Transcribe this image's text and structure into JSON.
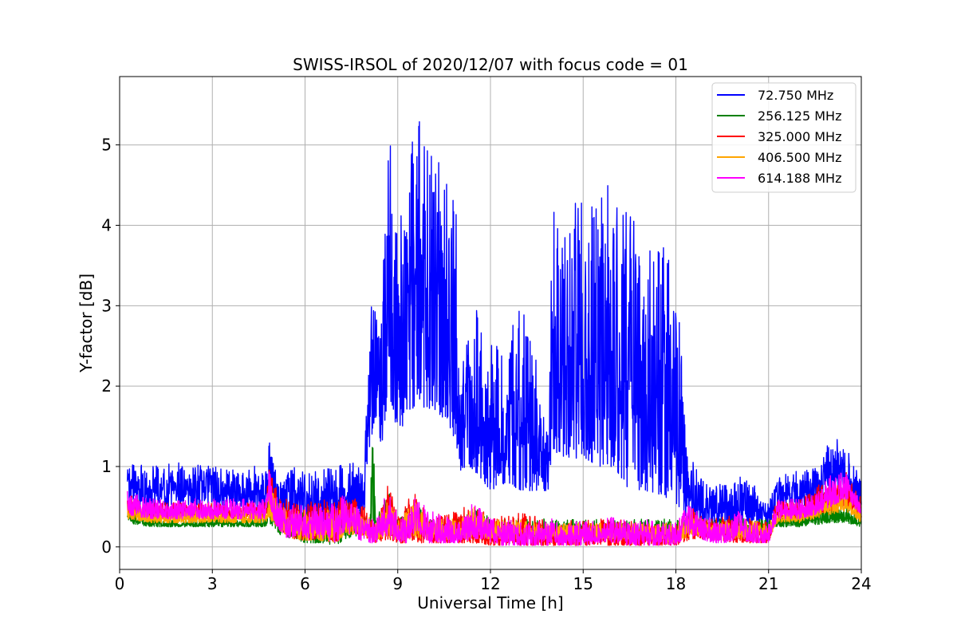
{
  "chart_data": {
    "type": "line",
    "title": "SWISS-IRSOL of 2020/12/07 with focus code = 01",
    "xlabel": "Universal Time [h]",
    "ylabel": "Y-factor [dB]",
    "xlim": [
      0,
      24
    ],
    "ylim": [
      -0.28,
      5.85
    ],
    "xticks": [
      0,
      3,
      6,
      9,
      12,
      15,
      18,
      21,
      24
    ],
    "xtick_labels": [
      "0",
      "3",
      "6",
      "9",
      "12",
      "15",
      "18",
      "21",
      "24"
    ],
    "yticks": [
      0,
      1,
      2,
      3,
      4,
      5
    ],
    "ytick_labels": [
      "0",
      "1",
      "2",
      "3",
      "4",
      "5"
    ],
    "grid": true,
    "legend_position": "top-right",
    "series": [
      {
        "name": " 72.750 MHz",
        "color": "#0000ff",
        "x": [
          0.25,
          1.0,
          2.0,
          3.0,
          4.0,
          4.7,
          4.85,
          5.0,
          5.5,
          6.0,
          6.5,
          7.0,
          7.5,
          7.9,
          8.1,
          8.3,
          8.5,
          8.7,
          8.9,
          9.2,
          9.6,
          10.0,
          10.5,
          10.9,
          11.0,
          11.3,
          11.6,
          12.0,
          12.5,
          13.0,
          13.5,
          13.9,
          14.0,
          14.5,
          15.0,
          15.5,
          16.0,
          16.5,
          17.0,
          17.5,
          18.0,
          18.3,
          18.5,
          19.0,
          19.5,
          20.0,
          20.5,
          21.0,
          21.3,
          22.0,
          22.5,
          22.9,
          23.3,
          23.7,
          24.0
        ],
        "lo": [
          0.55,
          0.5,
          0.5,
          0.52,
          0.5,
          0.48,
          0.7,
          0.45,
          0.35,
          0.3,
          0.3,
          0.35,
          0.4,
          0.3,
          1.3,
          1.6,
          1.2,
          2.0,
          1.5,
          1.5,
          1.8,
          1.7,
          1.6,
          1.3,
          0.9,
          1.0,
          0.9,
          0.7,
          0.8,
          0.7,
          0.7,
          0.7,
          1.2,
          1.1,
          1.1,
          1.0,
          1.0,
          0.7,
          0.7,
          0.65,
          0.55,
          0.4,
          0.25,
          0.25,
          0.25,
          0.25,
          0.3,
          0.25,
          0.5,
          0.5,
          0.55,
          0.65,
          0.75,
          0.55,
          0.5
        ],
        "hi": [
          1.1,
          1.0,
          1.05,
          1.0,
          0.95,
          1.05,
          1.45,
          1.05,
          1.0,
          1.0,
          0.95,
          1.0,
          1.05,
          1.0,
          3.2,
          3.0,
          3.2,
          5.5,
          4.5,
          4.0,
          5.55,
          5.0,
          4.7,
          4.45,
          2.0,
          2.8,
          3.0,
          2.6,
          2.5,
          3.1,
          2.3,
          1.6,
          4.3,
          4.4,
          4.3,
          4.5,
          4.6,
          4.2,
          3.9,
          3.95,
          3.8,
          1.6,
          1.2,
          0.8,
          0.8,
          0.9,
          0.8,
          0.6,
          0.9,
          0.95,
          1.0,
          1.3,
          1.35,
          1.1,
          0.8
        ]
      },
      {
        "name": "256.125 MHz",
        "color": "#008000",
        "x": [
          0.25,
          1.0,
          2.0,
          3.0,
          4.0,
          4.7,
          4.85,
          5.2,
          5.6,
          6.0,
          6.5,
          7.0,
          7.3,
          7.8,
          8.1,
          8.2,
          8.3,
          8.7,
          9.0,
          9.5,
          10.0,
          11.0,
          11.5,
          12.0,
          13.0,
          14.0,
          15.0,
          16.0,
          17.0,
          18.0,
          18.5,
          19.0,
          20.0,
          21.0,
          21.3,
          22.0,
          23.0,
          23.5,
          24.0
        ],
        "lo": [
          0.3,
          0.25,
          0.25,
          0.25,
          0.25,
          0.25,
          0.3,
          0.15,
          0.1,
          0.05,
          0.05,
          0.02,
          0.1,
          0.15,
          0.2,
          0.25,
          0.2,
          0.2,
          0.15,
          0.15,
          0.15,
          0.15,
          0.15,
          0.1,
          0.1,
          0.1,
          0.1,
          0.1,
          0.1,
          0.05,
          0.2,
          0.2,
          0.15,
          0.15,
          0.25,
          0.25,
          0.3,
          0.3,
          0.25
        ],
        "hi": [
          0.45,
          0.35,
          0.35,
          0.35,
          0.35,
          0.35,
          0.65,
          0.45,
          0.4,
          0.45,
          0.4,
          0.4,
          0.5,
          0.4,
          0.35,
          1.95,
          0.35,
          0.7,
          0.35,
          0.6,
          0.35,
          0.35,
          0.55,
          0.35,
          0.35,
          0.35,
          0.35,
          0.35,
          0.35,
          0.35,
          0.4,
          0.35,
          0.35,
          0.35,
          0.4,
          0.4,
          0.55,
          0.5,
          0.35
        ]
      },
      {
        "name": "325.000 MHz",
        "color": "#ff0000",
        "x": [
          0.25,
          1.0,
          2.0,
          3.0,
          4.0,
          4.7,
          4.85,
          5.2,
          5.6,
          6.0,
          6.5,
          7.0,
          7.3,
          7.8,
          8.3,
          8.7,
          9.0,
          9.5,
          10.0,
          11.0,
          11.5,
          12.0,
          13.0,
          14.0,
          15.0,
          16.0,
          17.0,
          18.0,
          18.5,
          19.0,
          20.0,
          21.0,
          21.3,
          22.0,
          23.0,
          23.5,
          24.0
        ],
        "lo": [
          0.4,
          0.35,
          0.35,
          0.35,
          0.35,
          0.35,
          0.4,
          0.2,
          0.1,
          0.08,
          0.08,
          0.05,
          0.2,
          0.15,
          0.05,
          0.1,
          0.05,
          0.05,
          0.05,
          0.05,
          0.05,
          0.02,
          0.02,
          0.02,
          0.02,
          0.02,
          0.02,
          0.02,
          0.1,
          0.1,
          0.05,
          0.05,
          0.35,
          0.35,
          0.45,
          0.5,
          0.35
        ],
        "hi": [
          0.65,
          0.55,
          0.55,
          0.55,
          0.55,
          0.55,
          1.0,
          0.65,
          0.55,
          0.55,
          0.6,
          0.55,
          0.7,
          0.55,
          0.3,
          0.8,
          0.4,
          0.72,
          0.4,
          0.45,
          0.6,
          0.35,
          0.45,
          0.3,
          0.35,
          0.35,
          0.3,
          0.3,
          0.55,
          0.35,
          0.4,
          0.3,
          0.6,
          0.6,
          0.9,
          0.95,
          0.6
        ]
      },
      {
        "name": "406.500 MHz",
        "color": "#ffa500",
        "x": [
          0.25,
          1.0,
          2.0,
          3.0,
          4.0,
          4.7,
          4.85,
          5.2,
          5.6,
          6.0,
          6.5,
          7.0,
          7.3,
          7.8,
          8.3,
          8.7,
          9.0,
          9.5,
          10.0,
          11.0,
          11.5,
          12.0,
          13.0,
          14.0,
          15.0,
          16.0,
          17.0,
          18.0,
          18.5,
          19.0,
          20.0,
          21.0,
          21.3,
          22.0,
          23.0,
          23.5,
          24.0
        ],
        "lo": [
          0.35,
          0.3,
          0.3,
          0.3,
          0.3,
          0.3,
          0.35,
          0.2,
          0.1,
          0.08,
          0.08,
          0.05,
          0.15,
          0.15,
          0.08,
          0.12,
          0.08,
          0.1,
          0.08,
          0.1,
          0.1,
          0.1,
          0.1,
          0.1,
          0.1,
          0.1,
          0.1,
          0.05,
          0.15,
          0.15,
          0.1,
          0.1,
          0.3,
          0.3,
          0.4,
          0.45,
          0.3
        ],
        "hi": [
          0.55,
          0.45,
          0.45,
          0.45,
          0.45,
          0.45,
          0.8,
          0.55,
          0.45,
          0.5,
          0.5,
          0.45,
          0.55,
          0.45,
          0.3,
          0.65,
          0.35,
          0.6,
          0.35,
          0.35,
          0.5,
          0.35,
          0.35,
          0.3,
          0.3,
          0.3,
          0.3,
          0.3,
          0.45,
          0.3,
          0.35,
          0.3,
          0.45,
          0.45,
          0.65,
          0.7,
          0.45
        ]
      },
      {
        "name": "614.188 MHz",
        "color": "#ff00ff",
        "x": [
          0.25,
          1.0,
          2.0,
          3.0,
          4.0,
          4.7,
          4.85,
          5.0,
          5.4,
          5.8,
          6.2,
          6.6,
          7.0,
          7.3,
          7.7,
          8.0,
          8.3,
          8.7,
          9.0,
          9.3,
          9.6,
          10.0,
          10.5,
          11.0,
          11.4,
          11.8,
          12.2,
          12.8,
          13.3,
          14.0,
          14.5,
          15.0,
          15.5,
          16.0,
          16.5,
          17.0,
          17.5,
          18.0,
          18.4,
          18.8,
          19.2,
          19.6,
          20.0,
          20.5,
          21.0,
          21.3,
          22.0,
          22.5,
          23.0,
          23.5,
          24.0
        ],
        "lo": [
          0.4,
          0.35,
          0.35,
          0.35,
          0.35,
          0.35,
          0.55,
          0.3,
          0.1,
          0.15,
          0.1,
          0.1,
          0.05,
          0.2,
          0.1,
          0.05,
          0.05,
          0.15,
          0.05,
          0.05,
          0.2,
          0.05,
          0.05,
          0.05,
          0.1,
          0.1,
          0.02,
          0.02,
          0.02,
          0.02,
          0.02,
          0.02,
          0.05,
          0.05,
          0.02,
          0.02,
          0.02,
          0.02,
          0.15,
          0.1,
          0.05,
          0.05,
          0.1,
          0.05,
          0.05,
          0.35,
          0.35,
          0.4,
          0.5,
          0.6,
          0.4
        ],
        "hi": [
          0.7,
          0.6,
          0.6,
          0.6,
          0.6,
          0.6,
          1.0,
          0.7,
          0.55,
          0.5,
          0.6,
          0.55,
          0.6,
          0.65,
          0.5,
          0.35,
          0.35,
          0.75,
          0.4,
          0.35,
          0.7,
          0.45,
          0.4,
          0.3,
          0.55,
          0.5,
          0.3,
          0.35,
          0.3,
          0.35,
          0.3,
          0.35,
          0.3,
          0.4,
          0.3,
          0.35,
          0.3,
          0.3,
          0.55,
          0.4,
          0.35,
          0.3,
          0.45,
          0.3,
          0.3,
          0.6,
          0.6,
          0.65,
          0.9,
          0.95,
          0.55
        ]
      }
    ]
  }
}
